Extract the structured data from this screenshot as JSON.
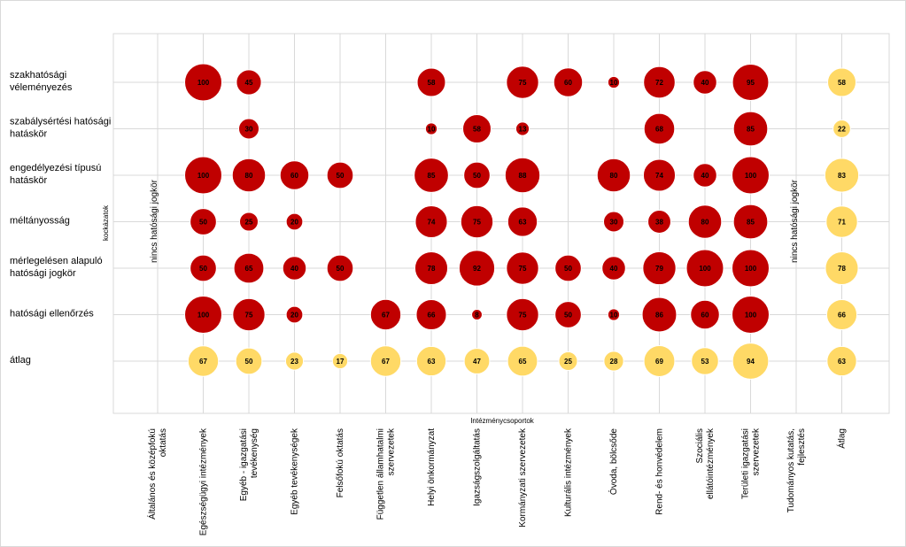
{
  "chart_data": {
    "type": "bubble",
    "x_axis_title": "Intézménycsoportok",
    "y_axis_title": "kockázatok",
    "note_left": "nincs hatósági jogkör",
    "note_right": "nincs hatósági jogkör",
    "categories": [
      [
        "Általános és középfokú",
        "oktatás"
      ],
      [
        "Egészségügyi intézmények"
      ],
      [
        "Egyéb - igazgatási",
        "tevékenység"
      ],
      [
        "Egyéb tevékenységek"
      ],
      [
        "Felsőfokú oktatás"
      ],
      [
        "Független államhatalmi",
        "szervezetek"
      ],
      [
        "Helyi önkormányzat"
      ],
      [
        "Igazságszolgáltatás"
      ],
      [
        "Kormányzati szervezetek"
      ],
      [
        "Kulturális intézmények"
      ],
      [
        "Óvoda, bölcsőde"
      ],
      [
        "Rend- és honvédelem"
      ],
      [
        "Szociális",
        "ellátóintézmények"
      ],
      [
        "Területi igazgatási",
        "szervezetek"
      ],
      [
        "Tudományos kutatás,",
        "fejlesztés"
      ],
      [
        "Átlag"
      ]
    ],
    "rows": [
      [
        "szakhatósági",
        "véleményezés"
      ],
      [
        "szabálysértési hatósági",
        "hatáskör"
      ],
      [
        "engedélyezési típusú",
        "hatáskör"
      ],
      [
        "méltányosság"
      ],
      [
        "mérlegelésen alapuló",
        "hatósági jogkör"
      ],
      [
        "hatósági ellenőrzés"
      ],
      [
        "átlag"
      ]
    ],
    "values": [
      [
        null,
        100,
        45,
        null,
        null,
        null,
        58,
        null,
        75,
        60,
        10,
        72,
        40,
        95,
        null,
        58
      ],
      [
        null,
        null,
        30,
        null,
        null,
        null,
        10,
        58,
        13,
        null,
        null,
        68,
        null,
        85,
        null,
        22
      ],
      [
        null,
        100,
        80,
        60,
        50,
        null,
        85,
        50,
        88,
        null,
        80,
        74,
        40,
        100,
        null,
        83
      ],
      [
        null,
        50,
        25,
        20,
        null,
        null,
        74,
        75,
        63,
        null,
        30,
        38,
        80,
        85,
        null,
        71
      ],
      [
        null,
        50,
        65,
        40,
        50,
        null,
        78,
        92,
        75,
        50,
        40,
        79,
        100,
        100,
        null,
        78
      ],
      [
        null,
        100,
        75,
        20,
        null,
        67,
        66,
        8,
        75,
        50,
        10,
        86,
        60,
        100,
        null,
        66
      ],
      [
        null,
        67,
        50,
        23,
        17,
        67,
        63,
        47,
        65,
        25,
        28,
        69,
        53,
        94,
        null,
        63
      ]
    ],
    "colors": {
      "risk": "#c00000",
      "average": "#ffd966",
      "grid": "#d9d9d9"
    },
    "grid": true,
    "legend": "none"
  }
}
